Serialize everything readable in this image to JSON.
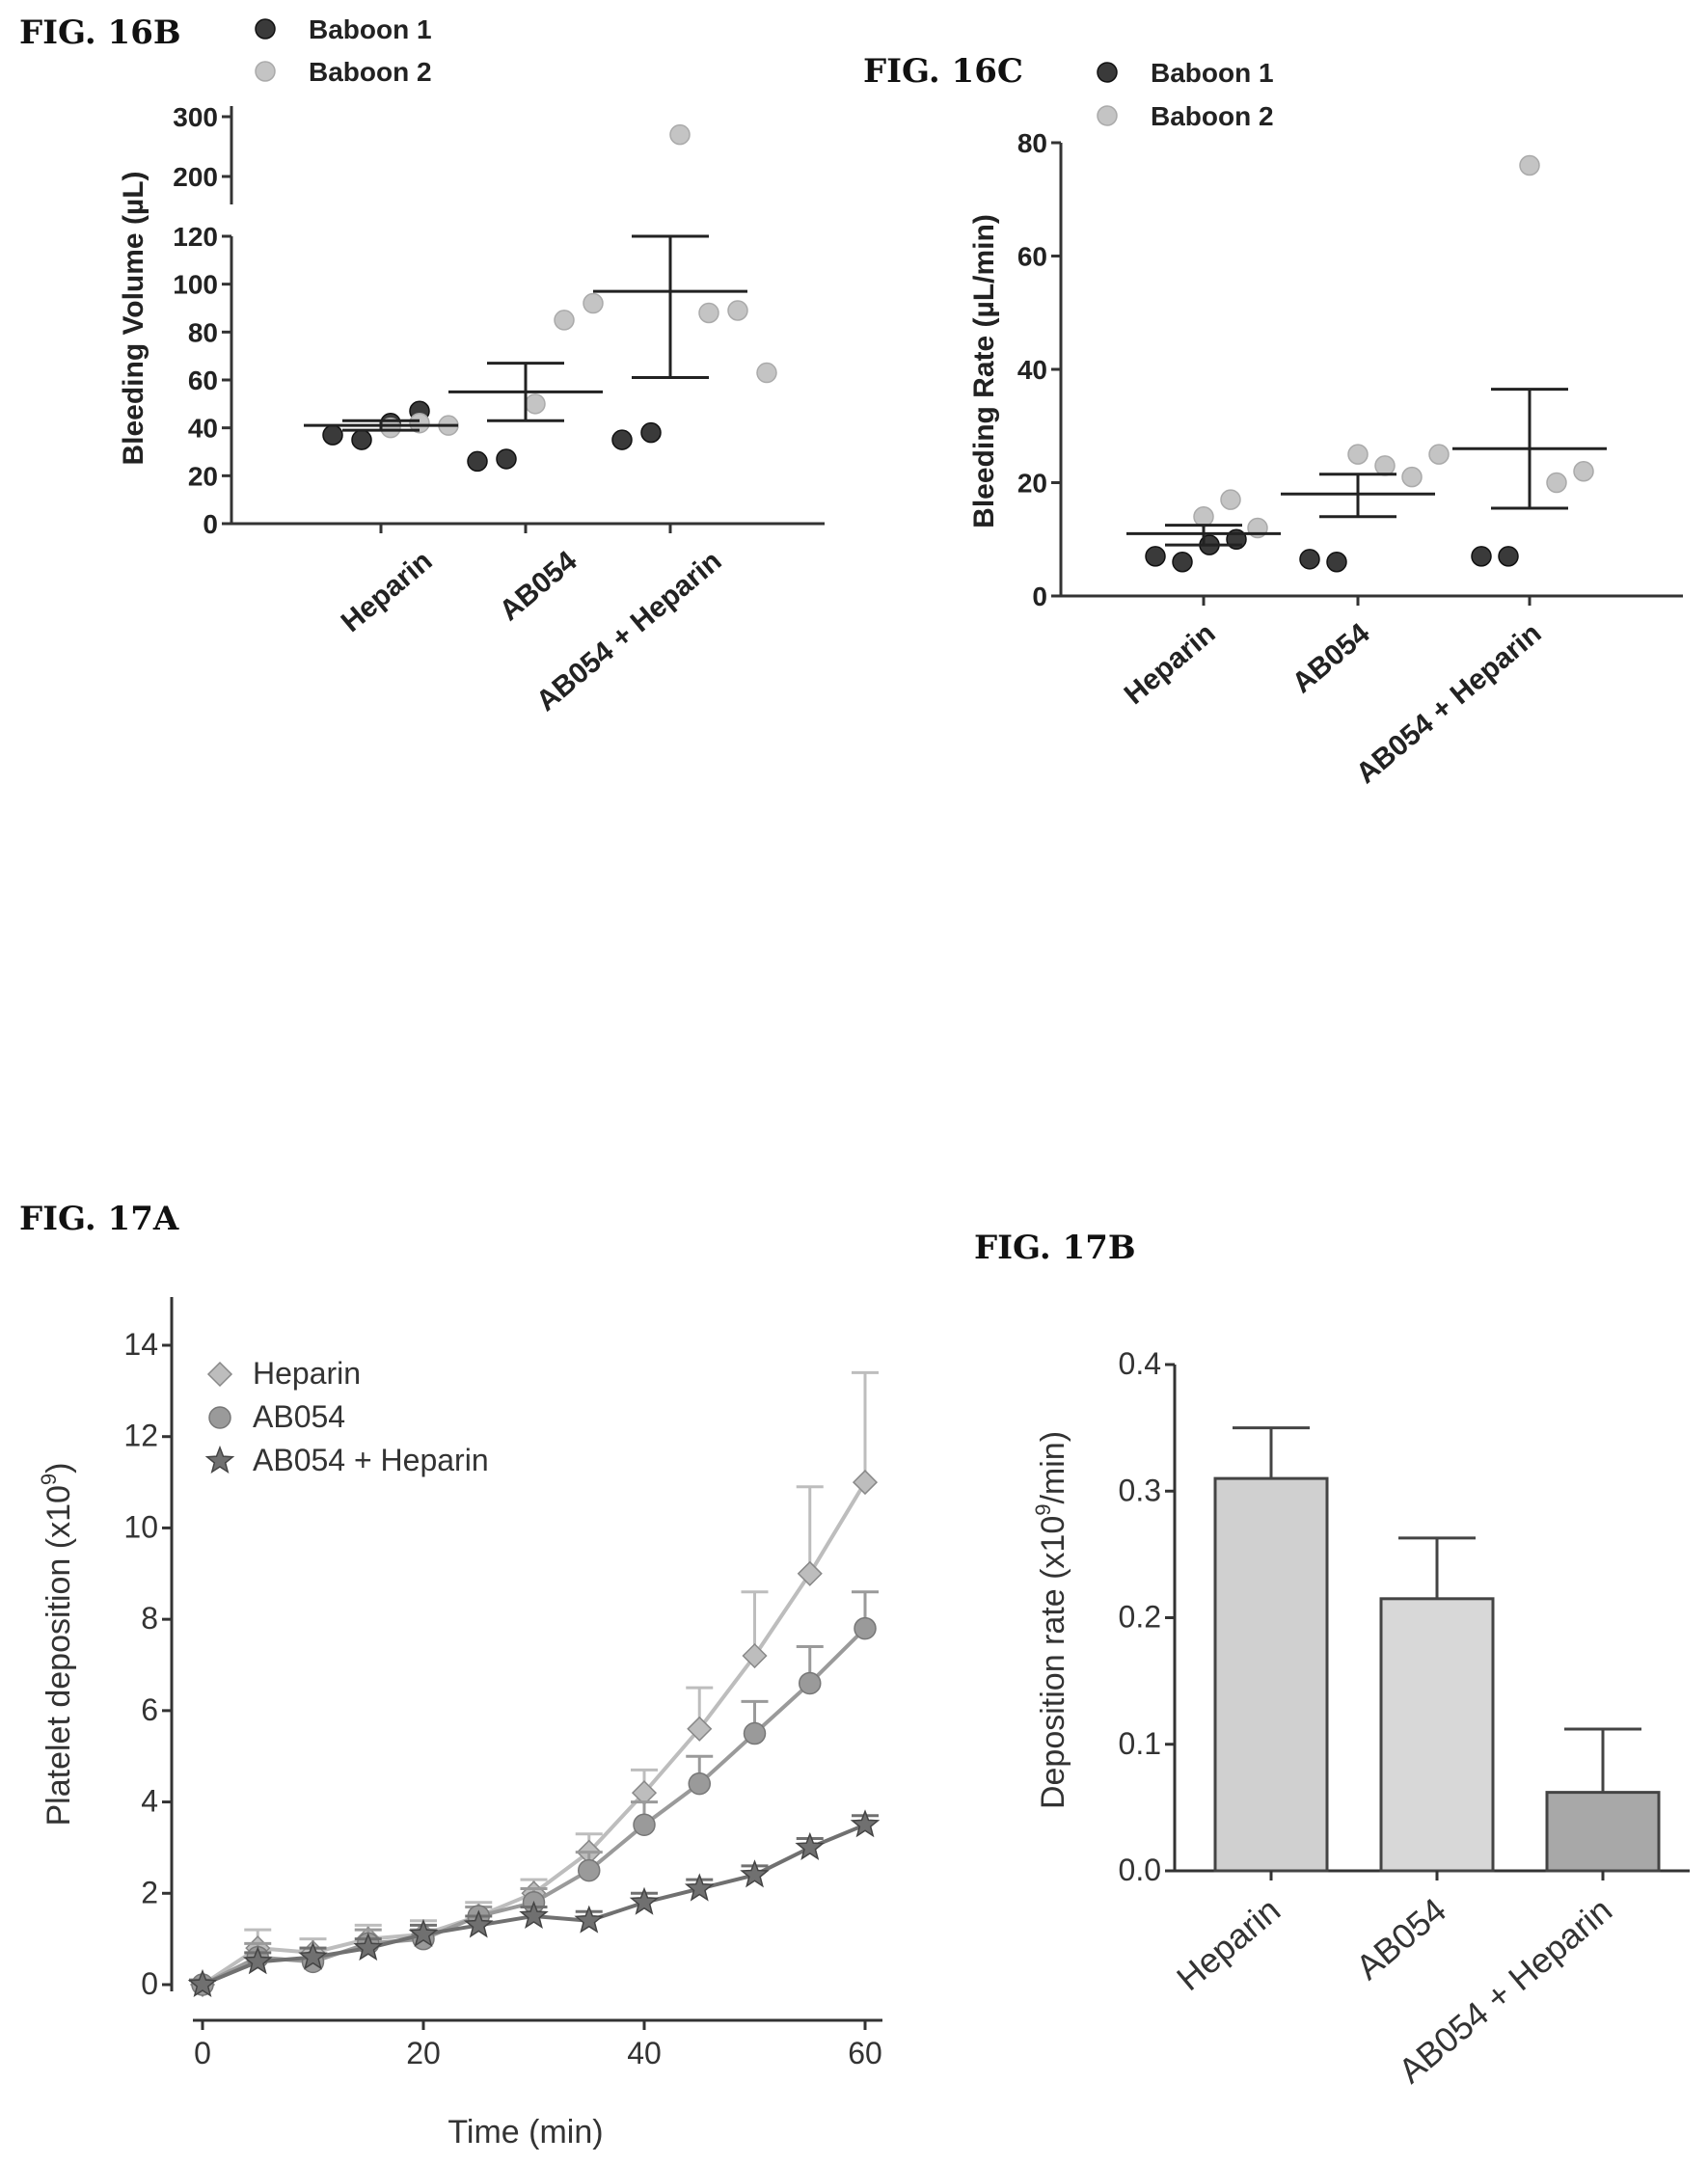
{
  "chart_data": [
    {
      "id": "16B",
      "figure_label": "FIG. 16B",
      "type": "scatter",
      "ylabel": "Bleeding Volume (µL)",
      "categories": [
        "Heparin",
        "AB054",
        "AB054 + Heparin"
      ],
      "ylim_lower": [
        0,
        120
      ],
      "ylim_upper": [
        200,
        300
      ],
      "yticks": [
        "0",
        "20",
        "40",
        "60",
        "80",
        "100",
        "120",
        "200",
        "300"
      ],
      "axis_break": true,
      "legend": {
        "placement": "top",
        "entries": [
          "Baboon 1",
          "Baboon 2"
        ]
      },
      "series": [
        {
          "name": "Baboon 1",
          "color": "#3a3a3a",
          "points": [
            [
              0,
              37
            ],
            [
              0,
              35
            ],
            [
              0,
              42
            ],
            [
              0,
              47
            ],
            [
              1,
              26
            ],
            [
              1,
              27
            ],
            [
              2,
              35
            ],
            [
              2,
              38
            ]
          ]
        },
        {
          "name": "Baboon 2",
          "color": "#c4c4c4",
          "points": [
            [
              0,
              40
            ],
            [
              0,
              42
            ],
            [
              0,
              41
            ],
            [
              1,
              50
            ],
            [
              1,
              85
            ],
            [
              1,
              92
            ],
            [
              2,
              270
            ],
            [
              2,
              88
            ],
            [
              2,
              89
            ],
            [
              2,
              63
            ]
          ]
        }
      ],
      "means": [
        41,
        55,
        97
      ],
      "error_bars": [
        [
          39,
          43
        ],
        [
          43,
          67
        ],
        [
          61,
          120
        ]
      ]
    },
    {
      "id": "16C",
      "figure_label": "FIG. 16C",
      "type": "scatter",
      "ylabel": "Bleeding Rate (µL/min)",
      "categories": [
        "Heparin",
        "AB054",
        "AB054 + Heparin"
      ],
      "ylim": [
        0,
        80
      ],
      "yticks": [
        "0",
        "20",
        "40",
        "60",
        "80"
      ],
      "legend": {
        "placement": "top",
        "entries": [
          "Baboon 1",
          "Baboon 2"
        ]
      },
      "series": [
        {
          "name": "Baboon 1",
          "color": "#3a3a3a",
          "points": [
            [
              0,
              7
            ],
            [
              0,
              6
            ],
            [
              0,
              9
            ],
            [
              0,
              10
            ],
            [
              1,
              6.5
            ],
            [
              1,
              6
            ],
            [
              2,
              7
            ],
            [
              2,
              7
            ]
          ]
        },
        {
          "name": "Baboon 2",
          "color": "#c4c4c4",
          "points": [
            [
              0,
              14
            ],
            [
              0,
              17
            ],
            [
              0,
              12
            ],
            [
              1,
              25
            ],
            [
              1,
              23
            ],
            [
              1,
              21
            ],
            [
              1,
              25
            ],
            [
              2,
              76
            ],
            [
              2,
              20
            ],
            [
              2,
              22
            ]
          ]
        }
      ],
      "means": [
        11,
        18,
        26
      ],
      "error_bars": [
        [
          9,
          12.5
        ],
        [
          14,
          21.5
        ],
        [
          15.5,
          36.5
        ]
      ]
    },
    {
      "id": "17A",
      "figure_label": "FIG. 17A",
      "type": "line",
      "xlabel": "Time (min)",
      "ylabel": "Platelet deposition (x10",
      "ylabel_sup": "9",
      "ylabel_end": ")",
      "xlim": [
        0,
        60
      ],
      "ylim": [
        0,
        14
      ],
      "xticks": [
        "0",
        "20",
        "40",
        "60"
      ],
      "yticks": [
        "0",
        "2",
        "4",
        "6",
        "8",
        "10",
        "12",
        "14"
      ],
      "x": [
        0,
        5,
        10,
        15,
        20,
        25,
        30,
        35,
        40,
        45,
        50,
        55,
        60
      ],
      "legend": {
        "placement": "top-left"
      },
      "series": [
        {
          "name": "Heparin",
          "color": "#bdbdbd",
          "marker": "diamond",
          "values": [
            0,
            0.8,
            0.7,
            1.0,
            1.1,
            1.5,
            2.0,
            2.9,
            4.2,
            5.6,
            7.2,
            9.0,
            11.0
          ],
          "err": [
            0.1,
            0.4,
            0.3,
            0.3,
            0.3,
            0.3,
            0.3,
            0.4,
            0.5,
            0.9,
            1.4,
            1.9,
            2.4
          ]
        },
        {
          "name": "AB054",
          "color": "#9a9a9a",
          "marker": "circle",
          "values": [
            0,
            0.6,
            0.5,
            0.9,
            1.0,
            1.5,
            1.8,
            2.5,
            3.5,
            4.4,
            5.5,
            6.6,
            7.8
          ],
          "err": [
            0.1,
            0.3,
            0.3,
            0.3,
            0.2,
            0.2,
            0.3,
            0.4,
            0.5,
            0.6,
            0.7,
            0.8,
            0.8
          ]
        },
        {
          "name": "AB054 + Heparin",
          "color": "#707070",
          "marker": "star",
          "values": [
            0,
            0.5,
            0.6,
            0.8,
            1.1,
            1.3,
            1.5,
            1.4,
            1.8,
            2.1,
            2.4,
            3.0,
            3.5
          ],
          "err": [
            0.1,
            0.2,
            0.2,
            0.2,
            0.2,
            0.2,
            0.2,
            0.2,
            0.2,
            0.2,
            0.2,
            0.2,
            0.2
          ]
        }
      ]
    },
    {
      "id": "17B",
      "figure_label": "FIG. 17B",
      "type": "bar",
      "ylabel": "Deposition rate (x10",
      "ylabel_sup": "9",
      "ylabel_end": "/min)",
      "categories": [
        "Heparin",
        "AB054",
        "AB054 + Heparin"
      ],
      "values": [
        0.31,
        0.215,
        0.062
      ],
      "err": [
        0.04,
        0.048,
        0.05
      ],
      "colors": [
        "#d0d0d0",
        "#d8d8d8",
        "#a8a8a8"
      ],
      "ylim": [
        0,
        0.4
      ],
      "yticks": [
        "0.0",
        "0.1",
        "0.2",
        "0.3",
        "0.4"
      ]
    }
  ]
}
